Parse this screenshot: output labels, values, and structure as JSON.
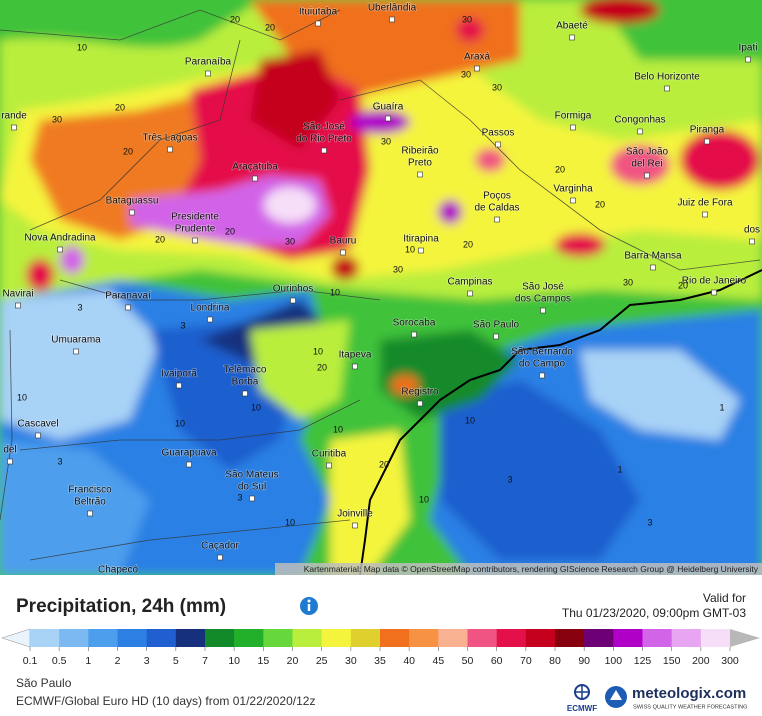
{
  "map": {
    "cities": [
      {
        "lines": [
          "Ituiutaba"
        ]
      },
      {
        "lines": [
          "Uberlândia"
        ]
      },
      {
        "lines": [
          "Abaeté"
        ]
      },
      {
        "lines": [
          "Ipati"
        ]
      },
      {
        "lines": [
          "Paranaíba"
        ]
      },
      {
        "lines": [
          "Araxá"
        ]
      },
      {
        "lines": [
          "Belo Horizonte"
        ]
      },
      {
        "lines": [
          "rande"
        ]
      },
      {
        "lines": [
          "Guaíra"
        ]
      },
      {
        "lines": [
          "Formiga"
        ]
      },
      {
        "lines": [
          "Congonhas"
        ]
      },
      {
        "lines": [
          "Piranga"
        ]
      },
      {
        "lines": [
          "Três Lagoas"
        ]
      },
      {
        "lines": [
          "São José",
          "do Rio Preto"
        ]
      },
      {
        "lines": [
          "Passos"
        ]
      },
      {
        "lines": [
          "São João",
          "del Rei"
        ]
      },
      {
        "lines": [
          "Ribeirão",
          "Preto"
        ]
      },
      {
        "lines": [
          "Araçatuba"
        ]
      },
      {
        "lines": [
          "Varginha"
        ]
      },
      {
        "lines": [
          "Poços",
          "de Caldas"
        ]
      },
      {
        "lines": [
          "Juiz de Fora"
        ]
      },
      {
        "lines": [
          "Bataguassu"
        ]
      },
      {
        "lines": [
          "Presidente",
          "Prudente"
        ]
      },
      {
        "lines": [
          "dos"
        ]
      },
      {
        "lines": [
          "Nova Andradina"
        ]
      },
      {
        "lines": [
          "Bauru"
        ]
      },
      {
        "lines": [
          "Itirapina"
        ]
      },
      {
        "lines": [
          "Barra Mansa"
        ]
      },
      {
        "lines": [
          "Campinas"
        ]
      },
      {
        "lines": [
          "São José",
          "dos Campos"
        ]
      },
      {
        "lines": [
          "Rio de Janeiro"
        ]
      },
      {
        "lines": [
          "Navirai"
        ]
      },
      {
        "lines": [
          "Paranavaí"
        ]
      },
      {
        "lines": [
          "Ourinhos"
        ]
      },
      {
        "lines": [
          "Londrina"
        ]
      },
      {
        "lines": [
          "Sorocaba"
        ]
      },
      {
        "lines": [
          "São Paulo"
        ]
      },
      {
        "lines": [
          "São Bernardo",
          "do Campo"
        ]
      },
      {
        "lines": [
          "Umuarama"
        ]
      },
      {
        "lines": [
          "Itapeva"
        ]
      },
      {
        "lines": [
          "Telêmaco",
          "Borba"
        ]
      },
      {
        "lines": [
          "Ivaiporã"
        ]
      },
      {
        "lines": [
          "Registro"
        ]
      },
      {
        "lines": [
          "Cascavel"
        ]
      },
      {
        "lines": [
          "del"
        ]
      },
      {
        "lines": [
          "Curitiba"
        ]
      },
      {
        "lines": [
          "Guarapuava"
        ]
      },
      {
        "lines": [
          "São Mateus",
          "do Sul"
        ]
      },
      {
        "lines": [
          "Francisco",
          "Beltrão"
        ]
      },
      {
        "lines": [
          "Joinville"
        ]
      },
      {
        "lines": [
          "Caçador"
        ]
      },
      {
        "lines": [
          "Chapecó"
        ]
      }
    ],
    "contour_labels": [
      "20",
      "30",
      "10",
      "20",
      "20",
      "30",
      "30",
      "30",
      "20",
      "30",
      "20",
      "20",
      "20",
      "20",
      "30",
      "10",
      "20",
      "30",
      "30",
      "20",
      "10",
      "10",
      "3",
      "3",
      "1",
      "10",
      "10",
      "10",
      "20",
      "10",
      "10",
      "3",
      "3",
      "1",
      "3",
      "10",
      "20",
      "10",
      "3"
    ],
    "attribution": "Kartenmaterial: Map data © OpenStreetMap contributors, rendering GIScience Research Group @ Heidelberg University"
  },
  "panel": {
    "title": "Precipitation, 24h (mm)",
    "valid_label": "Valid for",
    "valid_time": "Thu 01/23/2020, 09:00pm GMT-03",
    "location": "São Paulo",
    "model": "ECMWF/Global Euro HD (10 days) from 01/22/2020/12z",
    "ecmwf": "ECMWF",
    "brand": "meteologix.com",
    "tagline": "SWISS QUALITY WEATHER FORECASTING"
  },
  "legend": {
    "labels": [
      "0.1",
      "0.5",
      "1",
      "2",
      "3",
      "5",
      "7",
      "10",
      "15",
      "20",
      "25",
      "30",
      "35",
      "40",
      "45",
      "50",
      "60",
      "70",
      "80",
      "90",
      "100",
      "125",
      "150",
      "200",
      "300"
    ],
    "colors": [
      "#a8d2f6",
      "#7cb9f2",
      "#4d9eed",
      "#2c80e4",
      "#1f5fcf",
      "#17307e",
      "#138a2a",
      "#22b02a",
      "#66d83c",
      "#b9ee3c",
      "#f4f43c",
      "#dfd02e",
      "#f0701e",
      "#f79245",
      "#f8b292",
      "#f05482",
      "#e4104a",
      "#c4001e",
      "#86000e",
      "#6c0074",
      "#b000c8",
      "#d264e8",
      "#e8a6f2",
      "#f6def8"
    ],
    "low_color": "#eaf4ff",
    "high_color": "#b8b8b8"
  }
}
